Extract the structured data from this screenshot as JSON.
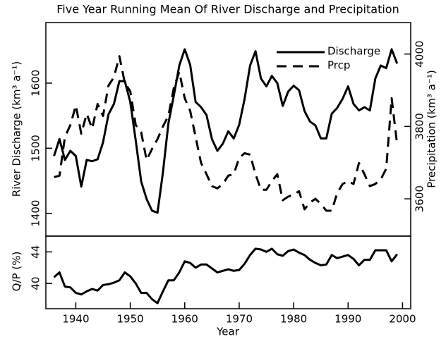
{
  "chart_data": [
    {
      "type": "line",
      "title": "Five Year Running Mean Of River Discharge and Precipitation",
      "ylabel": "River Discharge (km³ a⁻¹)",
      "y2label": "Precipitation (km³ a⁻¹)",
      "x": [
        1936,
        1937,
        1938,
        1939,
        1940,
        1941,
        1942,
        1943,
        1944,
        1945,
        1946,
        1947,
        1948,
        1949,
        1950,
        1951,
        1952,
        1953,
        1954,
        1955,
        1956,
        1957,
        1958,
        1959,
        1960,
        1961,
        1962,
        1963,
        1964,
        1965,
        1966,
        1967,
        1968,
        1969,
        1970,
        1971,
        1972,
        1973,
        1974,
        1975,
        1976,
        1977,
        1978,
        1979,
        1980,
        1981,
        1982,
        1983,
        1984,
        1985,
        1986,
        1987,
        1988,
        1989,
        1990,
        1991,
        1992,
        1993,
        1994,
        1995,
        1996,
        1997,
        1998,
        1999
      ],
      "xlim": [
        1934.5,
        2001.5
      ],
      "ylim": [
        1365,
        1693
      ],
      "yticks": [
        1400,
        1500,
        1600
      ],
      "y2lim": [
        3497,
        4087
      ],
      "y2ticks": [
        3600,
        3800,
        4000
      ],
      "legend": "upper right",
      "series": [
        {
          "name": "Discharge",
          "color": "#000000",
          "dash": false,
          "values": [
            1488,
            1514,
            1482,
            1496,
            1488,
            1441,
            1482,
            1480,
            1483,
            1509,
            1552,
            1568,
            1603,
            1603,
            1571,
            1512,
            1449,
            1422,
            1404,
            1401,
            1463,
            1538,
            1581,
            1627,
            1652,
            1628,
            1571,
            1563,
            1551,
            1514,
            1496,
            1507,
            1526,
            1515,
            1536,
            1576,
            1627,
            1649,
            1607,
            1595,
            1611,
            1600,
            1565,
            1587,
            1596,
            1589,
            1557,
            1541,
            1535,
            1515,
            1515,
            1553,
            1562,
            1576,
            1595,
            1568,
            1558,
            1563,
            1558,
            1607,
            1627,
            1623,
            1652,
            1630
          ]
        },
        {
          "name": "Prcp",
          "color": "#000000",
          "dash": true,
          "axis": "y2",
          "values": [
            3660,
            3664,
            3771,
            3804,
            3858,
            3780,
            3835,
            3794,
            3862,
            3829,
            3913,
            3936,
            3994,
            3920,
            3897,
            3804,
            3784,
            3707,
            3738,
            3765,
            3800,
            3829,
            3907,
            3951,
            3878,
            3843,
            3771,
            3699,
            3668,
            3635,
            3629,
            3641,
            3664,
            3668,
            3713,
            3726,
            3722,
            3668,
            3625,
            3625,
            3649,
            3668,
            3596,
            3606,
            3612,
            3621,
            3571,
            3590,
            3600,
            3586,
            3567,
            3567,
            3616,
            3641,
            3649,
            3641,
            3699,
            3668,
            3635,
            3641,
            3654,
            3683,
            3878,
            3751
          ]
        }
      ]
    },
    {
      "type": "line",
      "xlabel": "Year",
      "ylabel": "Q/P (%)",
      "x": [
        1936,
        1937,
        1938,
        1939,
        1940,
        1941,
        1942,
        1943,
        1944,
        1945,
        1946,
        1947,
        1948,
        1949,
        1950,
        1951,
        1952,
        1953,
        1954,
        1955,
        1956,
        1957,
        1958,
        1959,
        1960,
        1961,
        1962,
        1963,
        1964,
        1965,
        1966,
        1967,
        1968,
        1969,
        1970,
        1971,
        1972,
        1973,
        1974,
        1975,
        1976,
        1977,
        1978,
        1979,
        1980,
        1981,
        1982,
        1983,
        1984,
        1985,
        1986,
        1987,
        1988,
        1989,
        1990,
        1991,
        1992,
        1993,
        1994,
        1995,
        1996,
        1997,
        1998,
        1999
      ],
      "xlim": [
        1934.5,
        2001.5
      ],
      "xticks": [
        1940,
        1950,
        1960,
        1970,
        1980,
        1990,
        2000
      ],
      "ylim": [
        36.8,
        46
      ],
      "yticks": [
        40,
        44
      ],
      "series": [
        {
          "color": "#000000",
          "dash": false,
          "values": [
            40.8,
            41.4,
            39.6,
            39.5,
            38.8,
            38.6,
            39.0,
            39.3,
            39.1,
            39.8,
            39.9,
            40.1,
            40.4,
            41.4,
            40.9,
            40.0,
            38.8,
            38.8,
            38.0,
            37.5,
            39.0,
            40.4,
            40.4,
            41.4,
            42.8,
            42.6,
            42.0,
            42.4,
            42.4,
            41.9,
            41.4,
            41.6,
            41.8,
            41.6,
            41.7,
            42.5,
            43.6,
            44.4,
            44.3,
            44.0,
            44.4,
            43.7,
            43.5,
            44.1,
            44.3,
            43.9,
            43.6,
            43.0,
            42.6,
            42.3,
            42.4,
            43.6,
            43.2,
            43.4,
            43.6,
            43.1,
            42.3,
            43.0,
            43.0,
            44.2,
            44.2,
            44.2,
            42.8,
            43.7
          ]
        }
      ]
    }
  ]
}
